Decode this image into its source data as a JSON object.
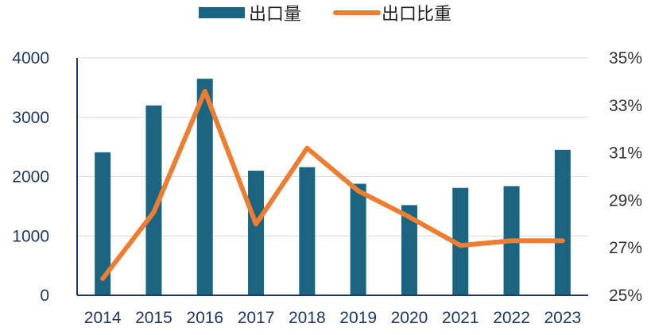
{
  "chart_data": {
    "type": "bar",
    "title": "",
    "xlabel": "",
    "ylabel": "",
    "y2label": "",
    "categories": [
      "2014",
      "2015",
      "2016",
      "2017",
      "2018",
      "2019",
      "2020",
      "2021",
      "2022",
      "2023"
    ],
    "series": [
      {
        "name": "出口量",
        "type": "bar",
        "axis": "left",
        "color": "#1b6583",
        "values": [
          2410,
          3200,
          3650,
          2100,
          2160,
          1880,
          1520,
          1810,
          1840,
          2450
        ]
      },
      {
        "name": "出口比重",
        "type": "line",
        "axis": "right",
        "color": "#ed7d31",
        "values": [
          25.7,
          28.5,
          33.6,
          28.0,
          31.2,
          29.4,
          28.3,
          27.1,
          27.3,
          27.3
        ]
      }
    ],
    "ylim": [
      0,
      4000
    ],
    "y_ticks": [
      "0",
      "1000",
      "2000",
      "3000",
      "4000"
    ],
    "y2lim": [
      25,
      35
    ],
    "y2_ticks": [
      "25%",
      "27%",
      "29%",
      "31%",
      "33%",
      "35%"
    ],
    "grid": true,
    "legend": "top-center"
  }
}
